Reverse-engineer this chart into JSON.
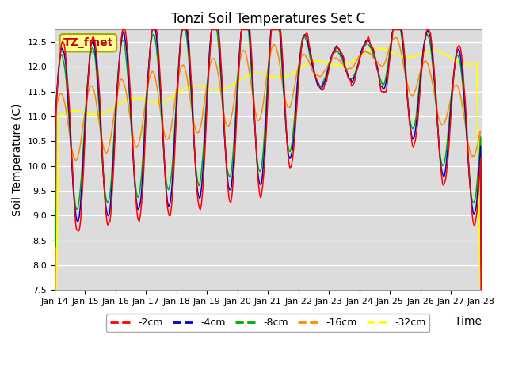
{
  "title": "Tonzi Soil Temperatures Set C",
  "xlabel": "Time",
  "ylabel": "Soil Temperature (C)",
  "ylim": [
    7.5,
    12.75
  ],
  "xlim": [
    0,
    14
  ],
  "bg_color": "#dcdcdc",
  "series_colors": {
    "-2cm": "#ff0000",
    "-4cm": "#0000cc",
    "-8cm": "#00aa00",
    "-16cm": "#ff8800",
    "-32cm": "#ffff00"
  },
  "annotation_text": "TZ_fmet",
  "annotation_color": "#cc0000",
  "annotation_bg": "#ffff99",
  "annotation_edge": "#aaa800",
  "xtick_labels": [
    "Jan 14",
    "Jan 15",
    "Jan 16",
    "Jan 17",
    "Jan 18",
    "Jan 19",
    "Jan 20",
    "Jan 21",
    "Jan 22",
    "Jan 23",
    "Jan 24",
    "Jan 25",
    "Jan 26",
    "Jan 27",
    "Jan 28"
  ],
  "ytick_labels": [
    "7.5",
    "8.0",
    "8.5",
    "9.0",
    "9.5",
    "10.0",
    "10.5",
    "11.0",
    "11.5",
    "12.0",
    "12.5"
  ],
  "num_points": 672
}
